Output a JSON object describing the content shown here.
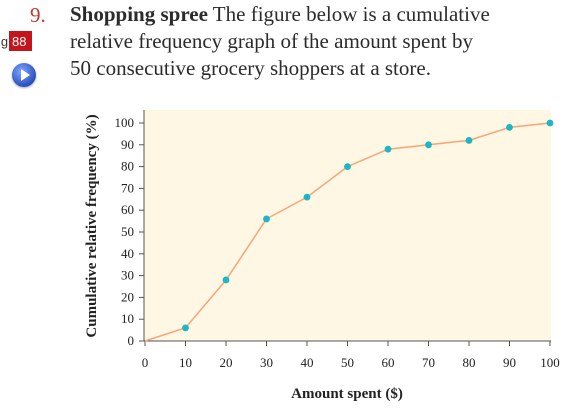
{
  "problem": {
    "number": "9.",
    "title": "Shopping spree",
    "line1_rest": "The figure below is a cumulative",
    "line2": "relative frequency graph of the amount spent by",
    "line3": "50 consecutive grocery shoppers at a store."
  },
  "page_tag": {
    "prefix": "g",
    "page": "88"
  },
  "icons": {
    "play": "play-icon"
  },
  "colors": {
    "plot_background": "#fdf7e3",
    "line": "#f7a57a",
    "points": "#1bb7c4",
    "problem_number": "#c0392b",
    "page_tag": "#c4151c"
  },
  "chart_data": {
    "type": "line",
    "title": "",
    "xlabel": "Amount spent ($)",
    "ylabel": "Cumulative relative frequency (%)",
    "xlim": [
      0,
      100
    ],
    "ylim": [
      0,
      100
    ],
    "xticks": [
      0,
      10,
      20,
      30,
      40,
      50,
      60,
      70,
      80,
      90,
      100
    ],
    "yticks": [
      0,
      10,
      20,
      30,
      40,
      50,
      60,
      70,
      80,
      90,
      100
    ],
    "grid": false,
    "series": [
      {
        "x": [
          0,
          10,
          20,
          30,
          40,
          50,
          60,
          70,
          80,
          90,
          100
        ],
        "y": [
          0,
          6,
          28,
          56,
          66,
          80,
          88,
          90,
          92,
          98,
          100
        ]
      }
    ]
  }
}
